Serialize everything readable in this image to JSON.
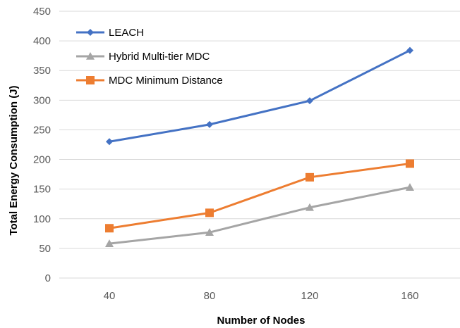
{
  "chart_data": {
    "type": "line",
    "title": "",
    "xlabel": "Number of Nodes",
    "ylabel": "Total Energy Consumption (J)",
    "categories": [
      "40",
      "80",
      "120",
      "160"
    ],
    "ylim": [
      0,
      450
    ],
    "yticks": [
      0,
      50,
      100,
      150,
      200,
      250,
      300,
      350,
      400,
      450
    ],
    "grid": "horizontal",
    "legend_position": "top-left",
    "series": [
      {
        "name": "LEACH",
        "values": [
          230,
          259,
          299,
          384
        ],
        "color": "#4472c4",
        "marker": "diamond"
      },
      {
        "name": "Hybrid Multi-tier MDC",
        "values": [
          58,
          77,
          119,
          153
        ],
        "color": "#a5a5a5",
        "marker": "triangle"
      },
      {
        "name": "MDC Minimum Distance",
        "values": [
          84,
          110,
          170,
          193
        ],
        "color": "#ed7d31",
        "marker": "square"
      }
    ]
  }
}
